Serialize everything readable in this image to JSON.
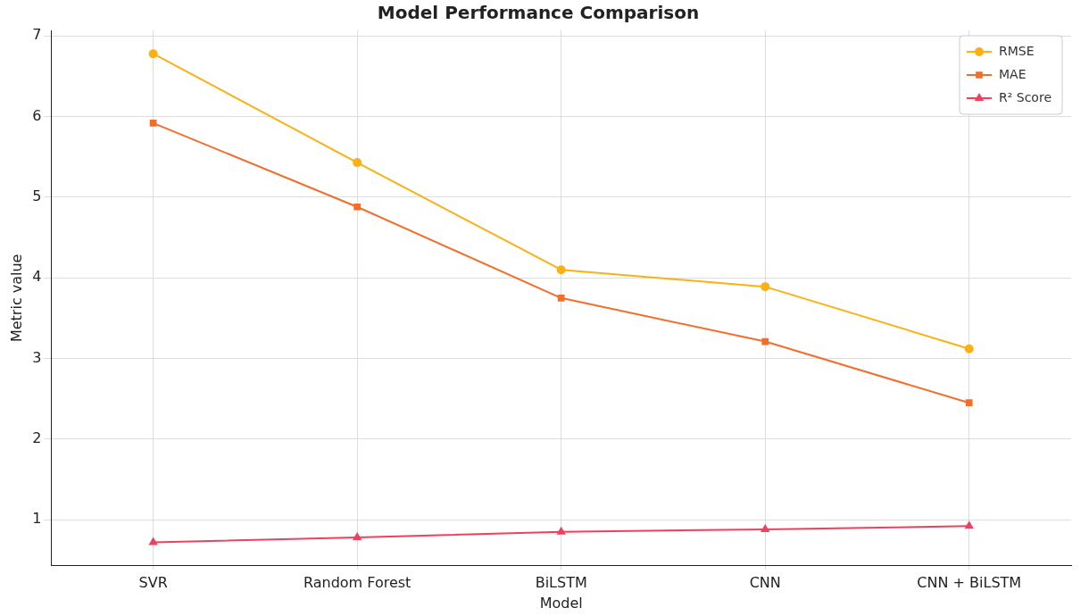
{
  "chart_data": {
    "type": "line",
    "title": "Model Performance Comparison",
    "xlabel": "Model",
    "ylabel": "Metric value",
    "categories": [
      "SVR",
      "Random Forest",
      "BiLSTM",
      "CNN",
      "CNN + BiLSTM"
    ],
    "series": [
      {
        "name": "RMSE",
        "color": "#fbb014",
        "marker": "circle",
        "values": [
          6.78,
          5.43,
          4.1,
          3.89,
          3.12
        ]
      },
      {
        "name": "MAE",
        "color": "#f46d2b",
        "marker": "square",
        "values": [
          5.92,
          4.88,
          3.75,
          3.21,
          2.45
        ]
      },
      {
        "name": "R² Score",
        "color": "#f0405e",
        "marker": "triangle",
        "values": [
          0.72,
          0.78,
          0.85,
          0.88,
          0.92
        ]
      }
    ],
    "ylim": [
      0.43,
      7.07
    ],
    "yticks": [
      1,
      2,
      3,
      4,
      5,
      6,
      7
    ],
    "grid": true,
    "legend": "top right",
    "line_style": "solid"
  }
}
